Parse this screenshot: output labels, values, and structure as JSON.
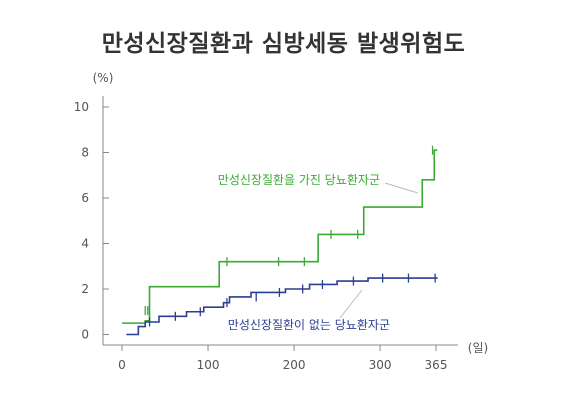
{
  "chart_data": {
    "type": "line",
    "title": "만성신장질환과 심방세동 발생위험도",
    "ylabel_unit": "(%)",
    "xlabel_unit": "(일)",
    "xlim": [
      0,
      365
    ],
    "ylim": [
      0,
      10
    ],
    "x_ticks": [
      "0",
      "100",
      "200",
      "300",
      "365"
    ],
    "y_ticks": [
      "0",
      "2",
      "4",
      "6",
      "8",
      "10"
    ],
    "x_tick_values": [
      0,
      100,
      200,
      300,
      365
    ],
    "y_tick_values": [
      0,
      2,
      4,
      6,
      8,
      10
    ],
    "colors": {
      "with_ckd": "#3aaa35",
      "without_ckd": "#2b3f94",
      "axis": "#888888",
      "leader": "#bbbbbb"
    },
    "series": [
      {
        "name": "만성신장질환을 가진 당뇨환자군",
        "color": "#3aaa35",
        "x": [
          0,
          27,
          32,
          113,
          228,
          281,
          349,
          363
        ],
        "y": [
          0.5,
          0.6,
          2.1,
          3.2,
          4.4,
          5.6,
          6.8,
          8.1
        ],
        "censor_x": [
          27,
          30,
          122,
          182,
          212,
          243,
          274,
          361
        ],
        "censor_y": [
          1.05,
          1.05,
          3.2,
          3.2,
          3.2,
          4.4,
          4.4,
          8.1
        ]
      },
      {
        "name": "만성신장질환이 없는 당뇨환자군",
        "color": "#2b3f94",
        "x": [
          5,
          19,
          27,
          43,
          75,
          95,
          118,
          125,
          150,
          190,
          218,
          250,
          286,
          367
        ],
        "y": [
          0,
          0.35,
          0.55,
          0.8,
          1.0,
          1.2,
          1.4,
          1.65,
          1.85,
          2.0,
          2.2,
          2.35,
          2.48,
          2.48
        ],
        "censor_x": [
          32,
          62,
          91,
          122,
          156,
          183,
          210,
          233,
          269,
          303,
          333,
          364
        ],
        "censor_y": [
          0.55,
          0.8,
          1.0,
          1.4,
          1.65,
          1.85,
          2.0,
          2.2,
          2.35,
          2.48,
          2.48,
          2.48
        ]
      }
    ]
  }
}
